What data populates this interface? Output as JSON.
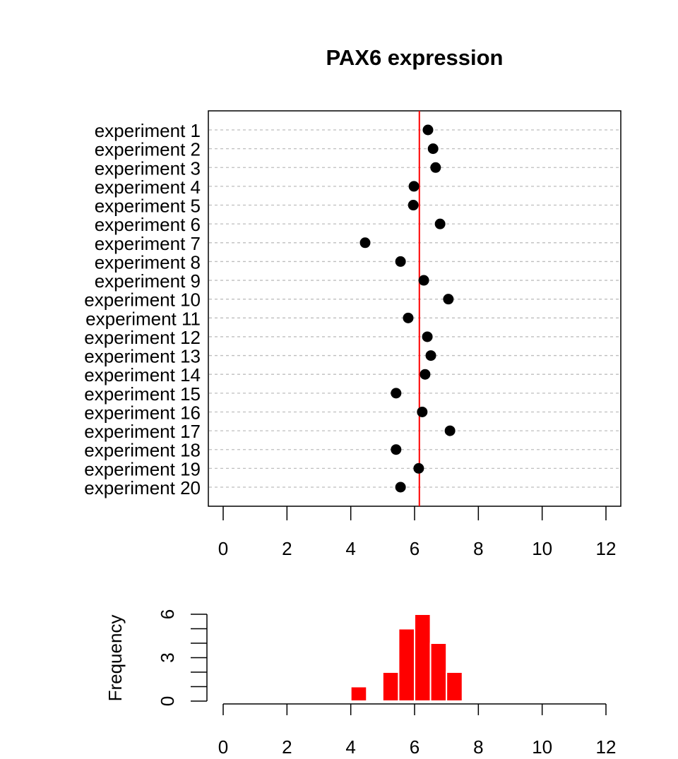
{
  "chart_data": [
    {
      "type": "scatter",
      "title": "PAX6 expression",
      "xlabel": "",
      "ylabel": "",
      "xlim": [
        0,
        12
      ],
      "x_ticks": [
        0,
        2,
        4,
        6,
        8,
        10,
        12
      ],
      "grid": "horizontal dashed per row",
      "categories": [
        "experiment 1",
        "experiment 2",
        "experiment 3",
        "experiment 4",
        "experiment 5",
        "experiment 6",
        "experiment 7",
        "experiment 8",
        "experiment 9",
        "experiment 10",
        "experiment 11",
        "experiment 12",
        "experiment 13",
        "experiment 14",
        "experiment 15",
        "experiment 16",
        "experiment 17",
        "experiment 18",
        "experiment 19",
        "experiment 20"
      ],
      "values": [
        6.42,
        6.58,
        6.66,
        5.98,
        5.96,
        6.8,
        4.45,
        5.56,
        6.29,
        7.06,
        5.8,
        6.4,
        6.51,
        6.33,
        5.42,
        6.24,
        7.11,
        5.42,
        6.13,
        5.56
      ],
      "reference_line": {
        "x": 6.15,
        "color": "#ff0000"
      },
      "point_color": "#000000"
    },
    {
      "type": "bar",
      "subtype": "histogram",
      "xlabel": "",
      "ylabel": "Frequency",
      "xlim": [
        0,
        12
      ],
      "ylim": [
        0,
        6
      ],
      "x_ticks": [
        0,
        2,
        4,
        6,
        8,
        10,
        12
      ],
      "y_ticks": [
        0,
        1,
        2,
        3,
        4,
        5,
        6
      ],
      "y_tick_labels": [
        "0",
        "3",
        "6"
      ],
      "bins": [
        [
          4.0,
          4.5
        ],
        [
          4.5,
          5.0
        ],
        [
          5.0,
          5.5
        ],
        [
          5.5,
          6.0
        ],
        [
          6.0,
          6.5
        ],
        [
          6.5,
          7.0
        ],
        [
          7.0,
          7.5
        ]
      ],
      "values": [
        1,
        0,
        2,
        5,
        6,
        4,
        2
      ],
      "color": "#ff0000"
    }
  ]
}
